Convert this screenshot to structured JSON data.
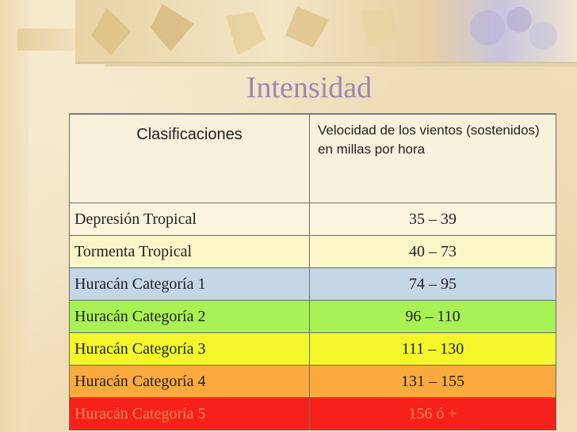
{
  "slide": {
    "title": "Intensidad",
    "colors": {
      "title": "#9c87b4",
      "background": "#f2e2bf"
    }
  },
  "table": {
    "header": {
      "col1": "Clasificaciones",
      "col2": "Velocidad de los vientos (sostenidos) en millas por hora"
    },
    "rows": [
      {
        "classification": "Depresión Tropical",
        "speed": "35 – 39",
        "color": "#fcf5de"
      },
      {
        "classification": "Tormenta Tropical",
        "speed": "40 – 73",
        "color": "#fbf6c8"
      },
      {
        "classification": "Huracán Categoría 1",
        "speed": "74 – 95",
        "color": "#c5d7e6"
      },
      {
        "classification": "Huracán Categoría 2",
        "speed": "96 – 110",
        "color": "#a8f255"
      },
      {
        "classification": "Huracán Categoría 3",
        "speed": "111 – 130",
        "color": "#f4f72a"
      },
      {
        "classification": "Huracán Categoría 4",
        "speed": "131 – 155",
        "color": "#fbaa3e"
      },
      {
        "classification": "Huracán Categoría 5",
        "speed": "156 ó +",
        "color": "#f6211a"
      }
    ]
  }
}
